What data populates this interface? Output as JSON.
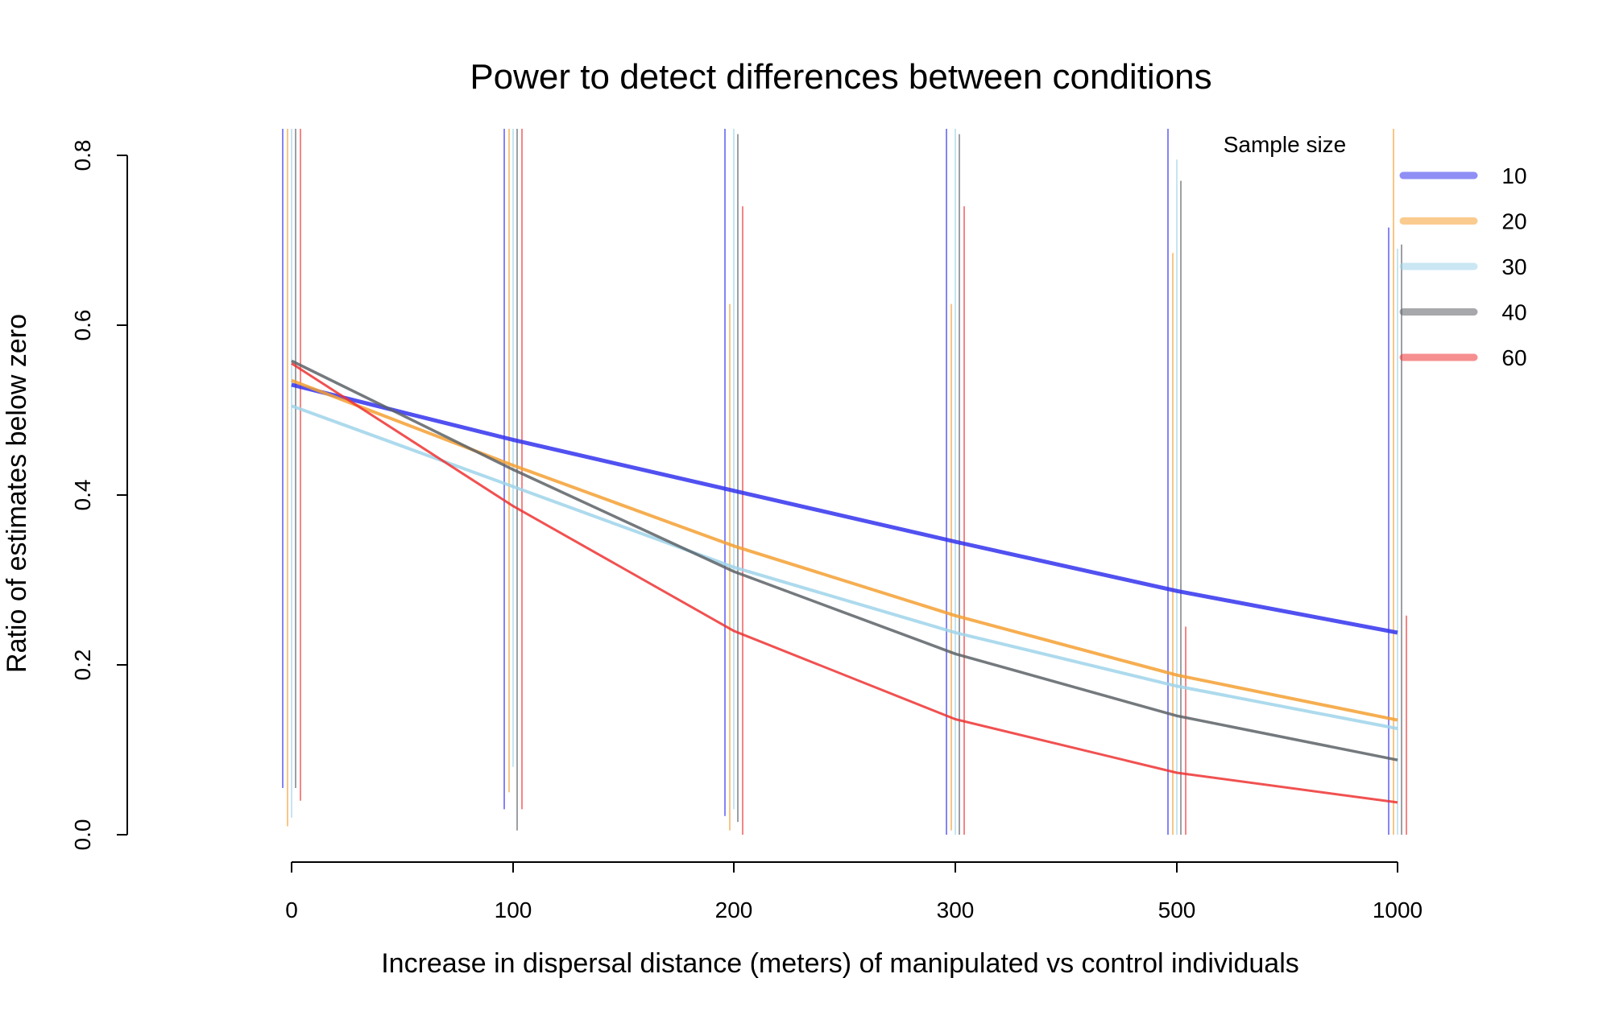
{
  "chart_data": {
    "type": "line",
    "title": "Power to detect differences between conditions",
    "xlabel": "Increase in dispersal distance (meters) of manipulated vs control individuals",
    "ylabel": "Ratio of estimates below zero",
    "categories": [
      "0",
      "100",
      "200",
      "300",
      "500",
      "1000"
    ],
    "ylim": [
      0,
      0.8
    ],
    "y_ticks": [
      "0.0",
      "0.2",
      "0.4",
      "0.6",
      "0.8"
    ],
    "legend": {
      "title": "Sample size",
      "position": "top-right"
    },
    "grid": false,
    "series": [
      {
        "name": "10",
        "color": "#3333ee",
        "values": [
          0.53,
          0.465,
          0.405,
          0.345,
          0.287,
          0.238
        ],
        "err_low": [
          0.055,
          0.03,
          0.022,
          0.0,
          0.0,
          0.0
        ],
        "err_high": [
          0.84,
          0.84,
          0.84,
          0.84,
          0.84,
          0.715
        ]
      },
      {
        "name": "20",
        "color": "#f5a033",
        "values": [
          0.535,
          0.435,
          0.34,
          0.258,
          0.188,
          0.135
        ],
        "err_low": [
          0.01,
          0.05,
          0.005,
          0.005,
          0.0,
          0.0
        ],
        "err_high": [
          0.84,
          0.84,
          0.625,
          0.625,
          0.685,
          0.84
        ]
      },
      {
        "name": "30",
        "color": "#9fd3ea",
        "values": [
          0.505,
          0.41,
          0.315,
          0.238,
          0.175,
          0.125
        ],
        "err_low": [
          0.02,
          0.08,
          0.03,
          0.0,
          0.0,
          0.0
        ],
        "err_high": [
          0.84,
          0.84,
          0.84,
          0.84,
          0.795,
          0.69
        ]
      },
      {
        "name": "40",
        "color": "#5c6166",
        "values": [
          0.558,
          0.43,
          0.31,
          0.213,
          0.14,
          0.088
        ],
        "err_low": [
          0.055,
          0.005,
          0.015,
          0.0,
          0.0,
          0.0
        ],
        "err_high": [
          0.84,
          0.84,
          0.825,
          0.825,
          0.77,
          0.695
        ]
      },
      {
        "name": "60",
        "color": "#ee3333",
        "values": [
          0.555,
          0.387,
          0.24,
          0.136,
          0.073,
          0.038
        ],
        "err_low": [
          0.04,
          0.03,
          0.0,
          0.0,
          0.0,
          0.0
        ],
        "err_high": [
          0.84,
          0.84,
          0.74,
          0.74,
          0.245,
          0.258
        ]
      }
    ]
  }
}
